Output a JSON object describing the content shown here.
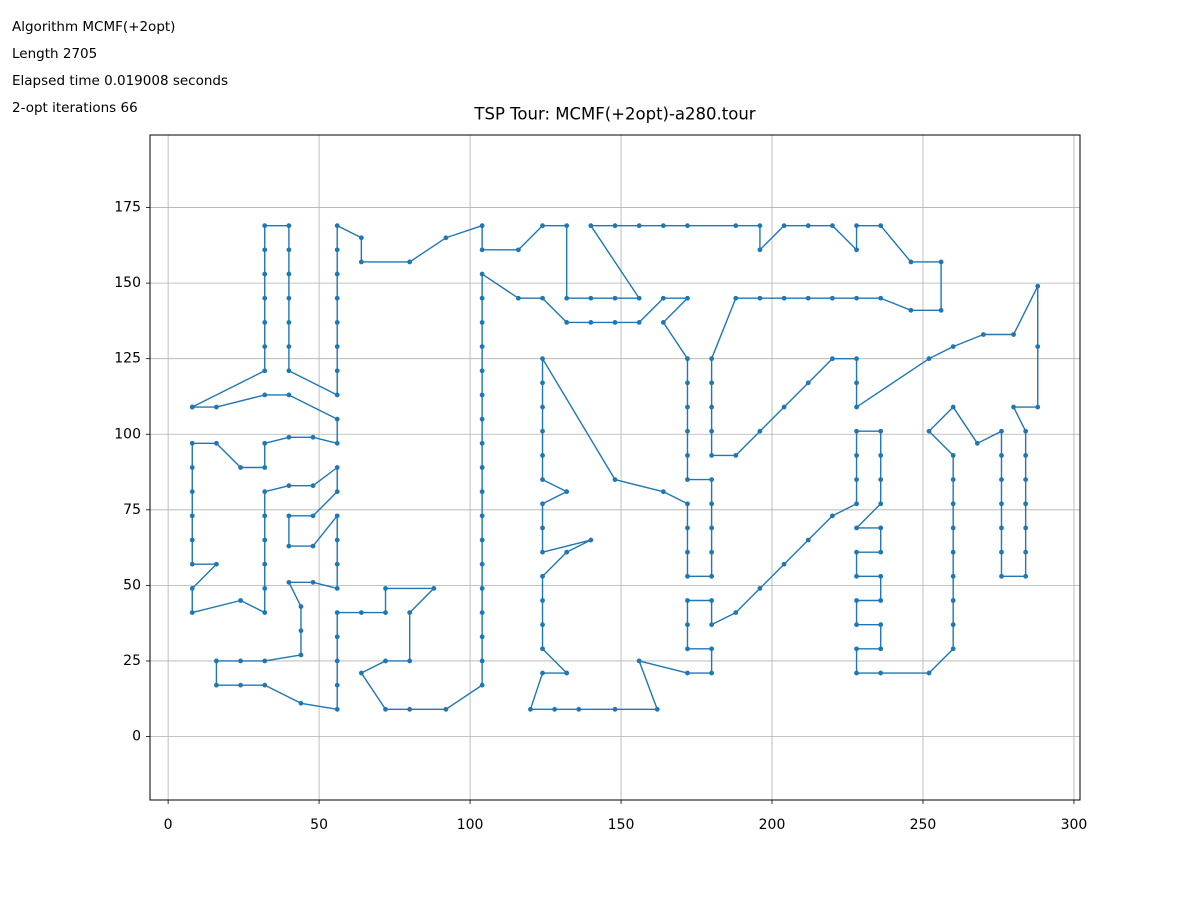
{
  "chart_data": {
    "type": "line",
    "title": "TSP Tour: MCMF(+2opt)-a280.tour",
    "annotations": [
      "Algorithm MCMF(+2opt)",
      "Length 2705",
      "Elapsed time 0.019008 seconds",
      "2-opt iterations 66"
    ],
    "xlim": [
      -6,
      302
    ],
    "ylim": [
      -21,
      199
    ],
    "xticks": [
      0,
      50,
      100,
      150,
      200,
      250,
      300
    ],
    "yticks": [
      0,
      25,
      50,
      75,
      100,
      125,
      150,
      175
    ],
    "grid": true,
    "series": [
      {
        "color": "#1f77b4",
        "x": [
          8,
          32,
          32,
          32,
          32,
          32,
          32,
          32,
          40,
          40,
          40,
          40,
          40,
          40,
          40,
          56,
          56,
          56,
          56,
          56,
          56,
          56,
          56,
          64,
          64,
          80,
          92,
          104,
          104,
          116,
          124,
          132,
          132,
          140,
          148,
          156,
          140,
          148,
          156,
          164,
          172,
          188,
          196,
          196,
          204,
          212,
          220,
          228,
          228,
          236,
          246,
          256,
          256,
          246,
          236,
          228,
          220,
          212,
          204,
          196,
          188,
          180,
          180,
          180,
          180,
          180,
          188,
          196,
          204,
          212,
          220,
          228,
          228,
          228,
          252,
          260,
          270,
          280,
          288,
          288,
          288,
          280,
          284,
          284,
          284,
          284,
          284,
          284,
          284,
          276,
          276,
          276,
          276,
          276,
          276,
          276,
          268,
          260,
          252,
          260,
          260,
          260,
          260,
          260,
          260,
          260,
          260,
          260,
          252,
          236,
          228,
          228,
          236,
          236,
          228,
          228,
          236,
          236,
          228,
          228,
          236,
          236,
          228,
          236,
          236,
          236,
          236,
          228,
          228,
          228,
          228,
          220,
          212,
          204,
          196,
          188,
          180,
          180,
          172,
          172,
          172,
          180,
          180,
          172,
          156,
          162,
          148,
          136,
          128,
          120,
          124,
          132,
          124,
          124,
          124,
          124,
          132,
          140,
          124,
          124,
          124,
          132,
          124,
          124,
          124,
          124,
          124,
          124,
          148,
          164,
          172,
          172,
          172,
          172,
          180,
          180,
          180,
          180,
          180,
          172,
          172,
          172,
          172,
          172,
          172,
          164,
          172,
          164,
          156,
          148,
          140,
          132,
          124,
          116,
          104,
          104,
          104,
          104,
          104,
          104,
          104,
          104,
          104,
          104,
          104,
          104,
          104,
          104,
          104,
          104,
          104,
          104,
          92,
          80,
          72,
          64,
          72,
          80,
          80,
          88,
          72,
          72,
          64,
          56,
          56,
          56,
          56,
          56,
          44,
          32,
          24,
          16,
          16,
          24,
          32,
          44,
          44,
          44,
          40,
          48,
          56,
          56,
          56,
          56,
          48,
          40,
          40,
          48,
          56,
          56,
          48,
          40,
          32,
          32,
          32,
          32,
          32,
          32,
          24,
          8,
          8,
          16,
          8,
          8,
          8,
          8,
          8,
          8,
          16,
          24,
          32,
          32,
          40,
          48,
          56,
          56,
          40,
          32,
          16,
          8
        ],
        "values": [
          109,
          121,
          129,
          137,
          145,
          153,
          161,
          169,
          169,
          161,
          153,
          145,
          137,
          129,
          121,
          113,
          121,
          129,
          137,
          145,
          153,
          161,
          169,
          165,
          157,
          157,
          165,
          169,
          161,
          161,
          169,
          169,
          145,
          145,
          145,
          145,
          169,
          169,
          169,
          169,
          169,
          169,
          169,
          161,
          169,
          169,
          169,
          161,
          169,
          169,
          157,
          157,
          141,
          141,
          145,
          145,
          145,
          145,
          145,
          145,
          145,
          125,
          117,
          109,
          101,
          93,
          93,
          101,
          109,
          117,
          125,
          125,
          117,
          109,
          125,
          129,
          133,
          133,
          149,
          129,
          109,
          109,
          101,
          93,
          85,
          77,
          69,
          61,
          53,
          53,
          61,
          69,
          77,
          85,
          93,
          101,
          97,
          109,
          101,
          93,
          85,
          77,
          69,
          61,
          53,
          45,
          37,
          29,
          21,
          21,
          21,
          29,
          29,
          37,
          37,
          45,
          45,
          53,
          53,
          61,
          61,
          69,
          69,
          77,
          85,
          93,
          101,
          101,
          93,
          85,
          77,
          73,
          65,
          57,
          49,
          41,
          37,
          45,
          45,
          37,
          29,
          29,
          21,
          21,
          25,
          9,
          9,
          9,
          9,
          9,
          21,
          21,
          29,
          37,
          45,
          53,
          61,
          65,
          61,
          69,
          77,
          81,
          85,
          93,
          101,
          109,
          117,
          125,
          85,
          81,
          77,
          69,
          61,
          53,
          53,
          61,
          69,
          77,
          85,
          85,
          93,
          101,
          109,
          117,
          125,
          137,
          145,
          145,
          137,
          137,
          137,
          137,
          145,
          145,
          153,
          145,
          137,
          129,
          121,
          113,
          105,
          97,
          89,
          81,
          73,
          65,
          57,
          49,
          41,
          33,
          25,
          17,
          9,
          9,
          9,
          21,
          25,
          25,
          41,
          49,
          49,
          41,
          41,
          41,
          33,
          25,
          17,
          9,
          11,
          17,
          17,
          17,
          25,
          25,
          25,
          27,
          35,
          43,
          51,
          51,
          49,
          57,
          65,
          73,
          63,
          63,
          73,
          73,
          81,
          89,
          83,
          83,
          81,
          73,
          65,
          57,
          49,
          41,
          45,
          41,
          49,
          57,
          57,
          65,
          73,
          81,
          89,
          97,
          97,
          89,
          89,
          97,
          99,
          99,
          97,
          105,
          113,
          113,
          109,
          109
        ]
      }
    ]
  }
}
